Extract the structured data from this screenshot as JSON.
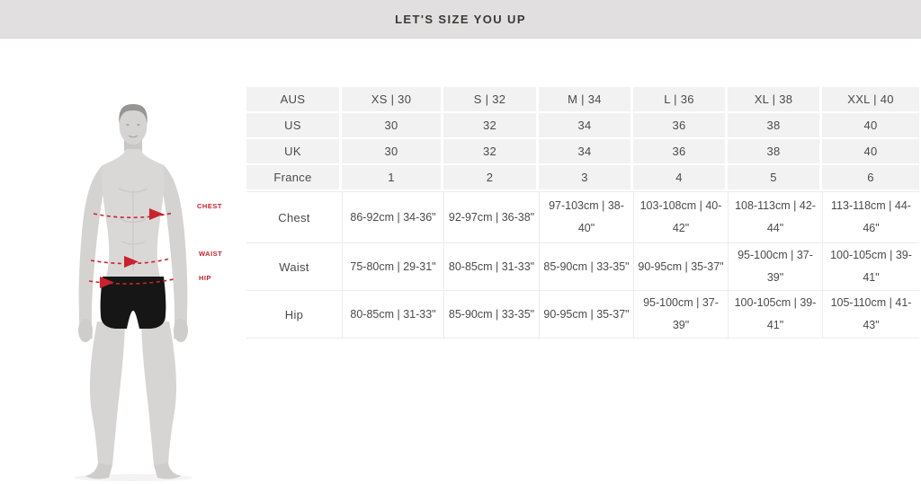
{
  "header": {
    "title": "LET'S SIZE YOU UP"
  },
  "figure": {
    "labels": [
      {
        "id": "chest",
        "text": "CHEST"
      },
      {
        "id": "waist",
        "text": "WAIST"
      },
      {
        "id": "hip",
        "text": "HIP"
      }
    ]
  },
  "table": {
    "header_row": {
      "label": "AUS",
      "values": [
        "XS | 30",
        "S | 32",
        "M | 34",
        "L | 36",
        "XL | 38",
        "XXL | 40"
      ]
    },
    "conversion_rows": [
      {
        "label": "US",
        "values": [
          "30",
          "32",
          "34",
          "36",
          "38",
          "40"
        ]
      },
      {
        "label": "UK",
        "values": [
          "30",
          "32",
          "34",
          "36",
          "38",
          "40"
        ]
      },
      {
        "label": "France",
        "values": [
          "1",
          "2",
          "3",
          "4",
          "5",
          "6"
        ]
      }
    ],
    "measurement_rows": [
      {
        "label": "Chest",
        "values": [
          "86-92cm | 34-36\"",
          "92-97cm | 36-38\"",
          "97-103cm | 38-40\"",
          "103-108cm | 40-42\"",
          "108-113cm | 42-44\"",
          "113-118cm | 44-46\""
        ]
      },
      {
        "label": "Waist",
        "values": [
          "75-80cm | 29-31\"",
          "80-85cm | 31-33\"",
          "85-90cm | 33-35\"",
          "90-95cm | 35-37\"",
          "95-100cm | 37-39\"",
          "100-105cm | 39-41\""
        ]
      },
      {
        "label": "Hip",
        "values": [
          "80-85cm | 31-33\"",
          "85-90cm | 33-35\"",
          "90-95cm | 35-37\"",
          "95-100cm | 37-39\"",
          "100-105cm | 39-41\"",
          "105-110cm | 41-43\""
        ]
      }
    ]
  },
  "colors": {
    "banner_bg": "#e1dfdf",
    "cell_bg": "#f2f2f2",
    "grid_line": "#ececec",
    "accent_red": "#c8232c",
    "text_color": "#474747"
  }
}
